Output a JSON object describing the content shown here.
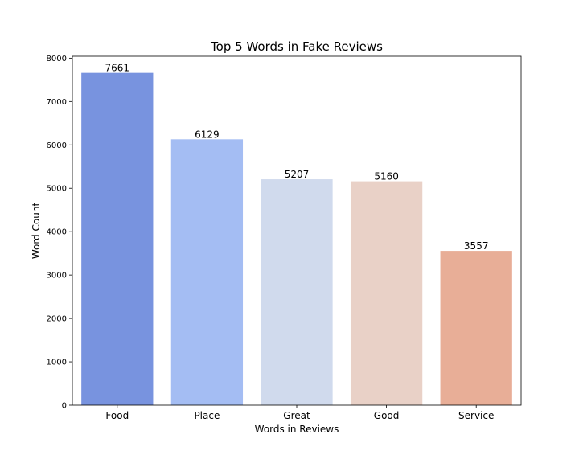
{
  "chart_data": {
    "type": "bar",
    "title": "Top 5 Words in Fake Reviews",
    "xlabel": "Words in Reviews",
    "ylabel": "Word Count",
    "categories": [
      "Food",
      "Place",
      "Great",
      "Good",
      "Service"
    ],
    "values": [
      7661,
      6129,
      5207,
      5160,
      3557
    ],
    "data_labels": [
      "7661",
      "6129",
      "5207",
      "5160",
      "3557"
    ],
    "colors": [
      "#7893df",
      "#a4bdf3",
      "#d0daed",
      "#e9d1c7",
      "#e8ae97"
    ],
    "ylim": [
      0,
      8044
    ],
    "yticks": [
      0,
      1000,
      2000,
      3000,
      4000,
      5000,
      6000,
      7000,
      8000
    ],
    "ytick_labels": [
      "0",
      "1000",
      "2000",
      "3000",
      "4000",
      "5000",
      "6000",
      "7000",
      "8000"
    ],
    "grid": false,
    "legend": "none"
  }
}
